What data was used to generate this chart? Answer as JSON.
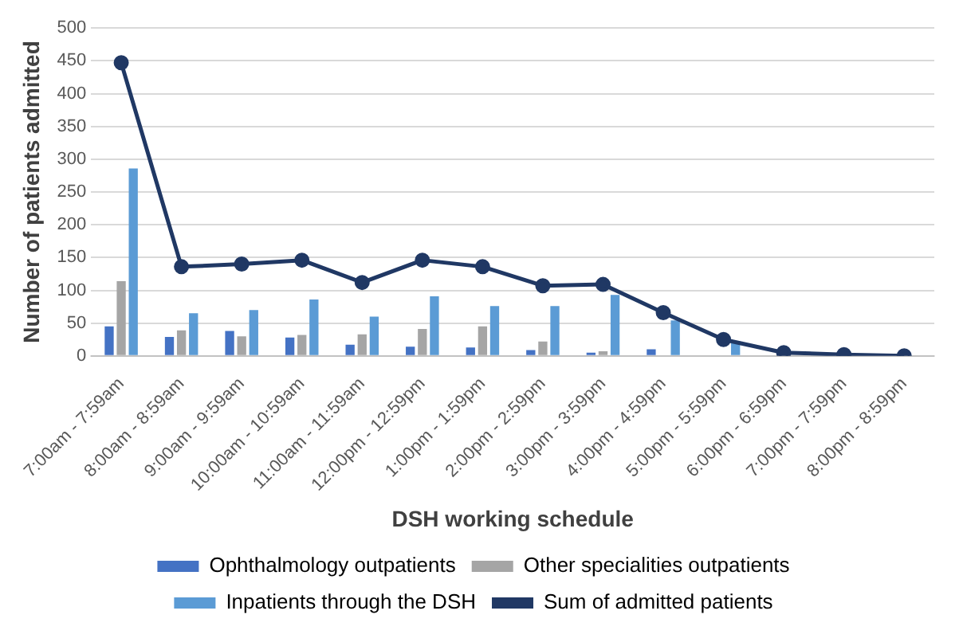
{
  "chart_data": {
    "type": "bar",
    "xlabel": "DSH working schedule",
    "ylabel": "Number of patients admitted",
    "categories": [
      "7:00am - 7:59am",
      "8:00am - 8:59am",
      "9:00am - 9:59am",
      "10:00am - 10:59am",
      "11:00am - 11:59am",
      "12:00pm - 12:59pm",
      "1:00pm - 1:59pm",
      "2:00pm - 2:59pm",
      "3:00pm - 3:59pm",
      "4:00pm - 4:59pm",
      "5:00pm - 5:59pm",
      "6:00pm - 6:59pm",
      "7:00pm - 7:59pm",
      "8:00pm - 8:59pm"
    ],
    "series": [
      {
        "name": "Ophthalmology outpatients",
        "color": "#4472c4",
        "values": [
          45,
          29,
          38,
          28,
          17,
          14,
          13,
          9,
          5,
          10,
          0,
          0,
          0,
          0
        ]
      },
      {
        "name": "Other specialities outpatients",
        "color": "#a5a5a5",
        "values": [
          114,
          39,
          30,
          32,
          33,
          41,
          45,
          22,
          7,
          0,
          0,
          0,
          0,
          0
        ]
      },
      {
        "name": "Inpatients through the DSH",
        "color": "#5b9bd5",
        "values": [
          286,
          65,
          70,
          86,
          60,
          91,
          76,
          76,
          93,
          54,
          23,
          null,
          0,
          0
        ]
      },
      {
        "name": "Sum of admitted patients",
        "type": "line",
        "color": "#203864",
        "marker": "circle",
        "values": [
          447,
          136,
          140,
          146,
          112,
          146,
          136,
          107,
          109,
          66,
          25,
          5,
          2,
          0
        ]
      }
    ],
    "ylim": [
      0,
      500
    ],
    "yticks": [
      0,
      50,
      100,
      150,
      200,
      250,
      300,
      350,
      400,
      450,
      500
    ],
    "grid": "y",
    "legend": "bottom"
  }
}
